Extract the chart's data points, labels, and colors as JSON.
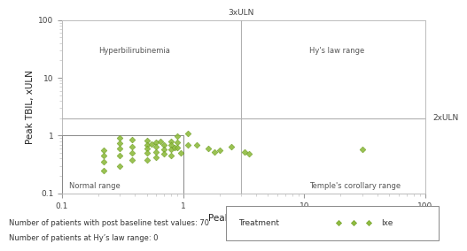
{
  "xlabel": "Peak ALT, xULN",
  "ylabel": "Peak TBIL, xULN",
  "xlim": [
    0.1,
    100
  ],
  "ylim": [
    0.1,
    100
  ],
  "x_data": [
    0.22,
    0.22,
    0.22,
    0.22,
    0.3,
    0.3,
    0.3,
    0.3,
    0.3,
    0.38,
    0.38,
    0.38,
    0.38,
    0.5,
    0.5,
    0.5,
    0.5,
    0.5,
    0.55,
    0.6,
    0.6,
    0.6,
    0.6,
    0.65,
    0.7,
    0.7,
    0.7,
    0.8,
    0.8,
    0.8,
    0.8,
    0.85,
    0.9,
    0.9,
    0.9,
    0.95,
    1.1,
    1.1,
    1.3,
    1.6,
    1.8,
    2.0,
    2.5,
    3.2,
    3.5,
    30.0
  ],
  "y_data": [
    0.55,
    0.45,
    0.35,
    0.25,
    0.9,
    0.75,
    0.6,
    0.45,
    0.3,
    0.85,
    0.65,
    0.5,
    0.38,
    0.82,
    0.7,
    0.6,
    0.5,
    0.38,
    0.72,
    0.78,
    0.65,
    0.52,
    0.42,
    0.8,
    0.7,
    0.58,
    0.48,
    0.8,
    0.68,
    0.58,
    0.45,
    0.62,
    0.98,
    0.78,
    0.62,
    0.5,
    1.1,
    0.7,
    0.7,
    0.6,
    0.52,
    0.55,
    0.65,
    0.52,
    0.48,
    0.58
  ],
  "vline_x": 3,
  "hline_2xuln": 2,
  "marker_color": "#8fbc3f",
  "marker_edge_color": "#6a9a1f",
  "line_color": "#b0b0b0",
  "box_color": "#888888",
  "label_hyperbilirubinemia": "Hyperbilirubinemia",
  "label_hys_law": "Hy's law range",
  "label_normal": "Normal range",
  "label_temple": "Temple's corollary range",
  "label_2xuln": "2xULN",
  "label_3xuln": "3xULN",
  "footnote1": "Number of patients with post baseline test values: 70",
  "footnote2": "Number of patients at Hy’s law range: 0",
  "legend_treatment": "Treatment",
  "legend_ixe": "Ixe"
}
